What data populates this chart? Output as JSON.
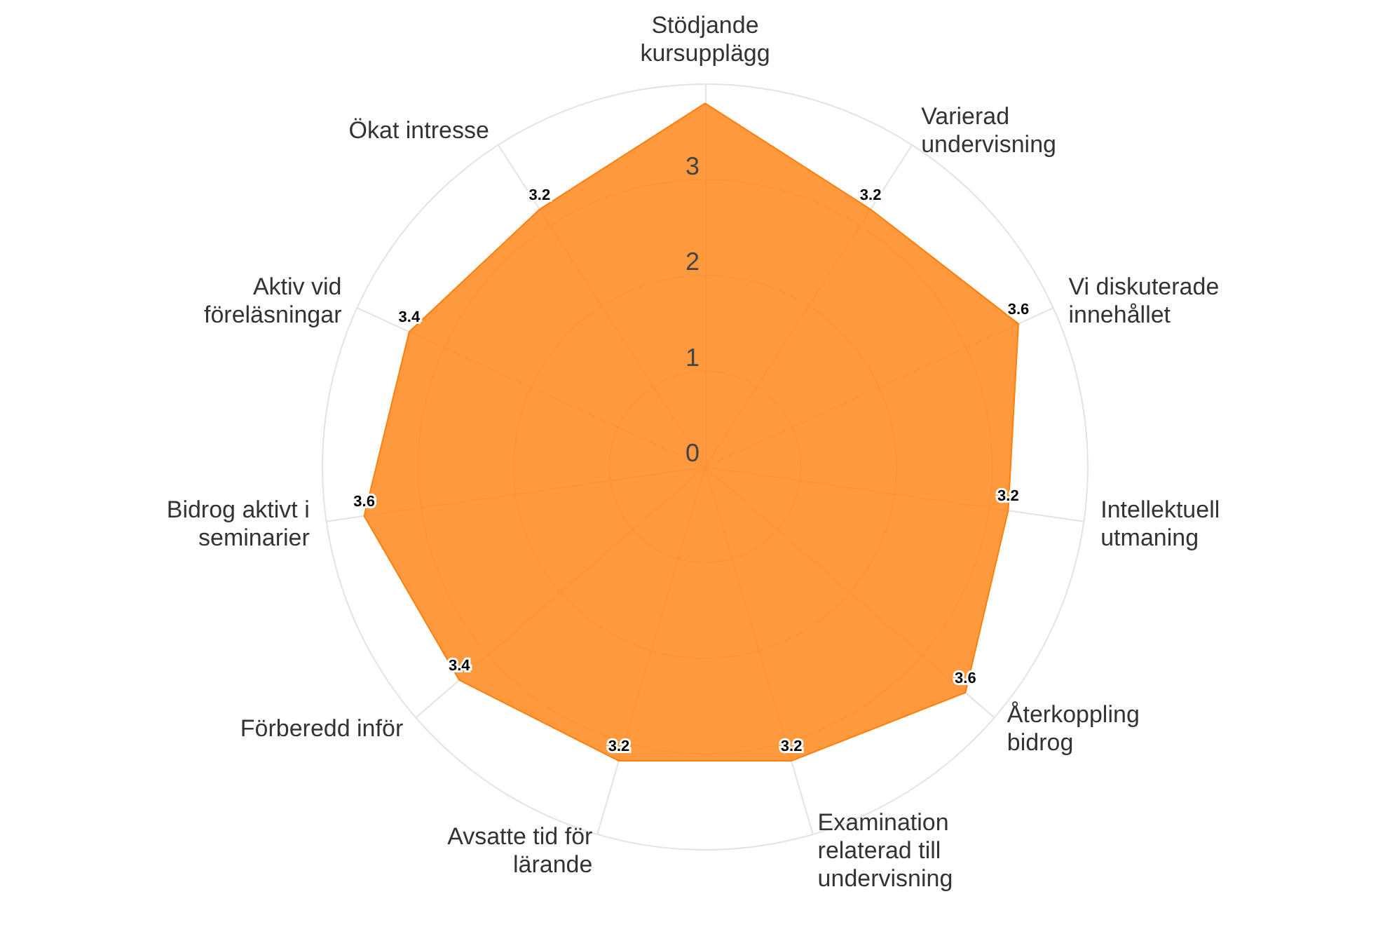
{
  "chart_data": {
    "type": "radar",
    "categories": [
      "Stödjande kursupplägg",
      "Varierad undervisning",
      "Vi diskuterade innehållet",
      "Intellektuell utmaning",
      "Återkoppling bidrog",
      "Examination relaterad till undervisning",
      "Avsatte tid för lärande",
      "Förberedd inför",
      "Bidrog aktivt i seminarier",
      "Aktiv vid föreläsningar",
      "Ökat intresse"
    ],
    "series": [
      {
        "color": "#ff7f0e",
        "values": [
          3.8,
          3.2,
          3.6,
          3.2,
          3.6,
          3.2,
          3.2,
          3.4,
          3.6,
          3.4,
          3.2
        ],
        "value_labels": [
          null,
          "3.2",
          "3.6",
          "3.2",
          "3.6",
          "3.2",
          "3.2",
          "3.4",
          "3.6",
          "3.4",
          "3.2"
        ]
      }
    ],
    "ylim": [
      0,
      4
    ],
    "yticks": [
      0,
      1,
      2,
      3
    ],
    "grid": true
  }
}
